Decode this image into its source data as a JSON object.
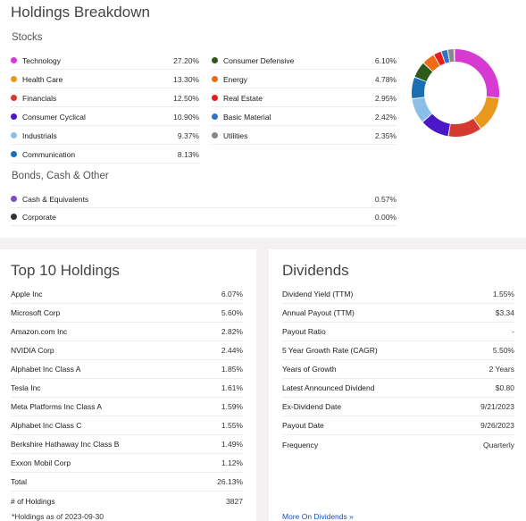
{
  "breakdown": {
    "title": "Holdings Breakdown",
    "stocks_label": "Stocks",
    "stocks_col1": [
      {
        "label": "Technology",
        "value": "27.20%",
        "color": "#d63ad1"
      },
      {
        "label": "Health Care",
        "value": "13.30%",
        "color": "#e8981c"
      },
      {
        "label": "Financials",
        "value": "12.50%",
        "color": "#d43b30"
      },
      {
        "label": "Consumer Cyclical",
        "value": "10.90%",
        "color": "#4b18c7"
      },
      {
        "label": "Industrials",
        "value": "9.37%",
        "color": "#8bbfe8"
      },
      {
        "label": "Communication",
        "value": "8.13%",
        "color": "#1a6fb3"
      }
    ],
    "stocks_col2": [
      {
        "label": "Consumer Defensive",
        "value": "6.10%",
        "color": "#2d5a1a"
      },
      {
        "label": "Energy",
        "value": "4.78%",
        "color": "#f26a14"
      },
      {
        "label": "Real Estate",
        "value": "2.95%",
        "color": "#e81c1c"
      },
      {
        "label": "Basic Material",
        "value": "2.42%",
        "color": "#2f74c9"
      },
      {
        "label": "Utilities",
        "value": "2.35%",
        "color": "#888888"
      }
    ],
    "bonds_label": "Bonds, Cash & Other",
    "bonds": [
      {
        "label": "Cash & Equivalents",
        "value": "0.57%",
        "color": "#7a4fc9"
      },
      {
        "label": "Corporate",
        "value": "0.00%",
        "color": "#333333"
      }
    ]
  },
  "chart_data": {
    "type": "pie",
    "categories": [
      "Technology",
      "Health Care",
      "Financials",
      "Consumer Cyclical",
      "Industrials",
      "Communication",
      "Consumer Defensive",
      "Energy",
      "Real Estate",
      "Basic Material",
      "Utilities",
      "Cash & Equivalents"
    ],
    "values": [
      27.2,
      13.3,
      12.5,
      10.9,
      9.37,
      8.13,
      6.1,
      4.78,
      2.95,
      2.42,
      2.35,
      0.57
    ],
    "colors": [
      "#d63ad1",
      "#e8981c",
      "#d43b30",
      "#4b18c7",
      "#8bbfe8",
      "#1a6fb3",
      "#2d5a1a",
      "#f26a14",
      "#e81c1c",
      "#2f74c9",
      "#888888",
      "#7a4fc9"
    ],
    "style": "donut"
  },
  "top10": {
    "title": "Top 10 Holdings",
    "rows": [
      {
        "label": "Apple Inc",
        "value": "6.07%"
      },
      {
        "label": "Microsoft Corp",
        "value": "5.60%"
      },
      {
        "label": "Amazon.com Inc",
        "value": "2.82%"
      },
      {
        "label": "NVIDIA Corp",
        "value": "2.44%"
      },
      {
        "label": "Alphabet Inc Class A",
        "value": "1.85%"
      },
      {
        "label": "Tesla Inc",
        "value": "1.61%"
      },
      {
        "label": "Meta Platforms Inc Class A",
        "value": "1.59%"
      },
      {
        "label": "Alphabet Inc Class C",
        "value": "1.55%"
      },
      {
        "label": "Berkshire Hathaway Inc Class B",
        "value": "1.49%"
      },
      {
        "label": "Exxon Mobil Corp",
        "value": "1.12%"
      }
    ],
    "total_label": "Total",
    "total_value": "26.13%",
    "count_label": "# of Holdings",
    "count_value": "3827",
    "as_of": "*Holdings as of 2023-09-30"
  },
  "dividends": {
    "title": "Dividends",
    "rows": [
      {
        "label": "Dividend Yield (TTM)",
        "value": "1.55%"
      },
      {
        "label": "Annual Payout (TTM)",
        "value": "$3.34"
      },
      {
        "label": "Payout Ratio",
        "value": "-"
      },
      {
        "label": "5 Year Growth Rate (CAGR)",
        "value": "5.50%"
      },
      {
        "label": "Years of Growth",
        "value": "2 Years"
      },
      {
        "label": "Latest Announced Dividend",
        "value": "$0.80"
      },
      {
        "label": "Ex-Dividend Date",
        "value": "9/21/2023"
      },
      {
        "label": "Payout Date",
        "value": "9/26/2023"
      },
      {
        "label": "Frequency",
        "value": "Quarterly"
      }
    ],
    "more_link": "More On Dividends »"
  }
}
